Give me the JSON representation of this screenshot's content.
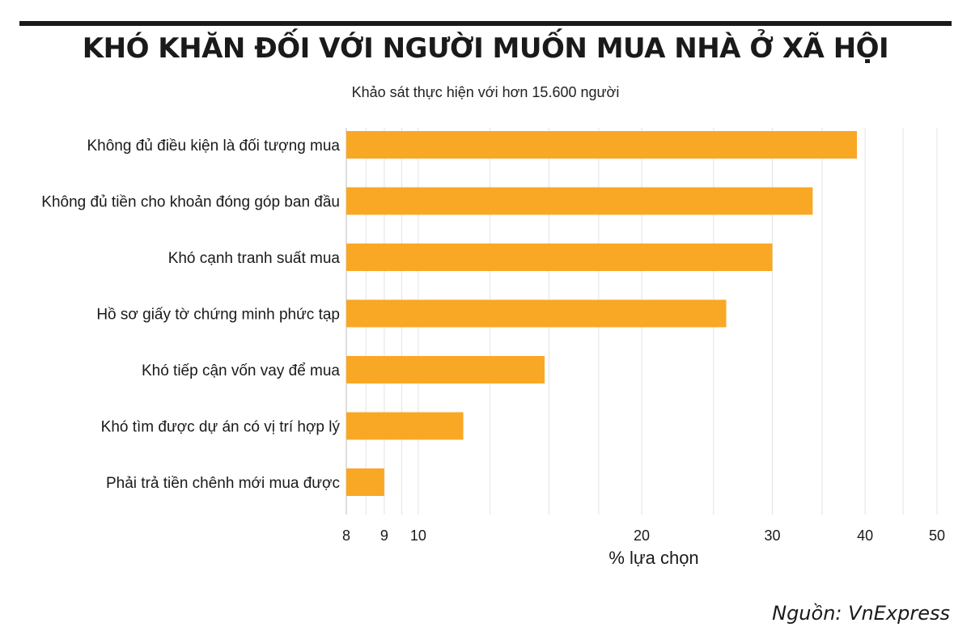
{
  "title": "KHÓ KHĂN ĐỐI VỚI NGƯỜI MUỐN MUA NHÀ Ở XÃ HỘI",
  "subtitle": "Khảo sát thực hiện với hơn 15.600 người",
  "source": "Nguồn: VnExpress",
  "colors": {
    "bar": "#f9a825",
    "grid": "#e3e3e3",
    "text": "#1a1a1a"
  },
  "chart_data": {
    "type": "bar",
    "orientation": "horizontal",
    "xscale": "log",
    "categories": [
      "Không đủ điều kiện là đối tượng mua",
      "Không đủ tiền cho khoản đóng góp ban đầu",
      "Khó cạnh tranh suất mua",
      "Hồ sơ giấy tờ chứng minh phức tạp",
      "Khó tiếp cận vốn vay để mua",
      "Khó tìm được dự án có vị trí hợp lý",
      "Phải trả tiền chênh mới mua được"
    ],
    "values": [
      39,
      34,
      30,
      26,
      14.8,
      11.5,
      9
    ],
    "xlabel": "% lựa chọn",
    "xlim": [
      8,
      55
    ],
    "xticks": [
      8,
      9,
      10,
      20,
      30,
      40,
      50
    ],
    "grid": true
  }
}
